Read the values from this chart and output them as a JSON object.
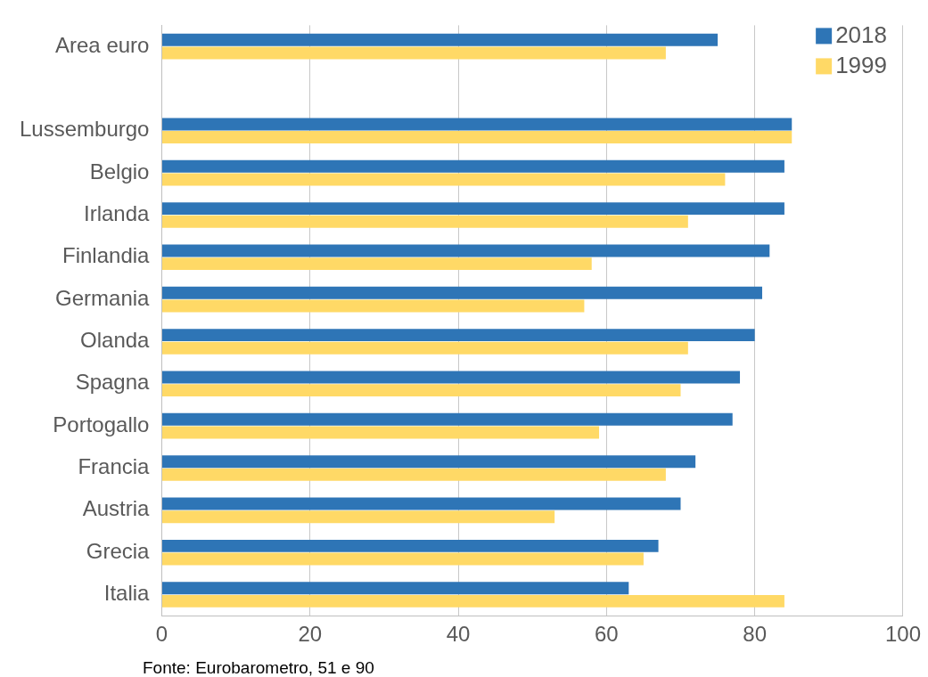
{
  "chart_data": {
    "type": "bar",
    "orientation": "horizontal",
    "categories": [
      "Area euro",
      null,
      "Lussemburgo",
      "Belgio",
      "Irlanda",
      "Finlandia",
      "Germania",
      "Olanda",
      "Spagna",
      "Portogallo",
      "Francia",
      "Austria",
      "Grecia",
      "Italia"
    ],
    "series": [
      {
        "name": "2018",
        "color": "#2e75b6",
        "values": [
          75,
          null,
          85,
          84,
          84,
          82,
          81,
          80,
          78,
          77,
          72,
          70,
          67,
          63
        ]
      },
      {
        "name": "1999",
        "color": "#ffd966",
        "values": [
          68,
          null,
          85,
          76,
          71,
          58,
          57,
          71,
          70,
          59,
          68,
          53,
          65,
          84
        ]
      }
    ],
    "xlim": [
      0,
      100
    ],
    "xticks": [
      0,
      20,
      40,
      60,
      80,
      100
    ],
    "grid": "x",
    "legend": "top right",
    "annotations": [
      "Fonte: Eurobarometro, 51 e 90"
    ]
  }
}
